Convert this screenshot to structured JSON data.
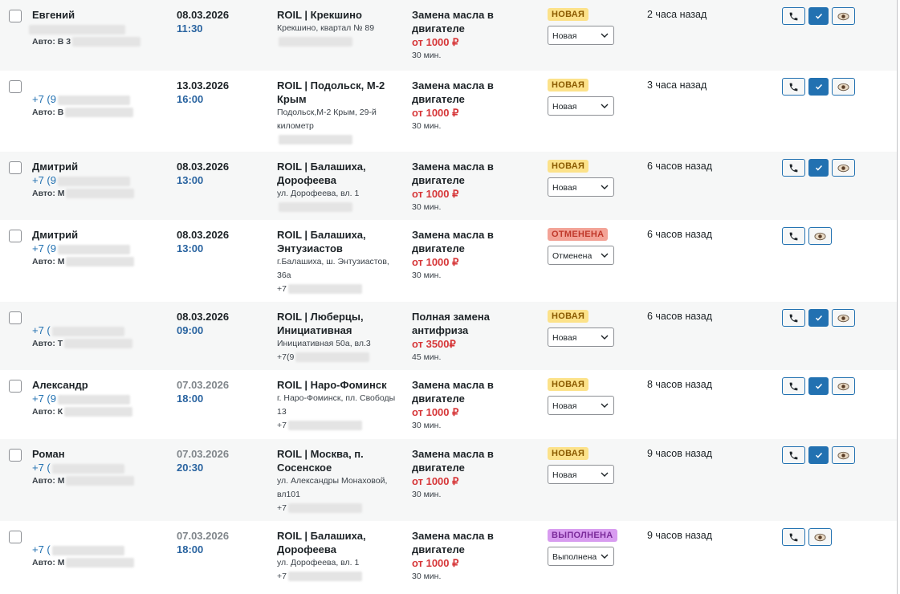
{
  "rows": [
    {
      "name": "Евгений",
      "car": "Авто: В 3",
      "date": "08.03.2026",
      "time": "11:30",
      "date_muted": false,
      "location": "ROIL | Крекшино",
      "address": "Крекшино, квартал № 89",
      "service": "Замена масла в двигателе",
      "price": "от 1000 ₽",
      "duration": "30 мин.",
      "badge": "НОВАЯ",
      "status": "Новая",
      "status_kind": "new",
      "ago": "2 часа назад",
      "confirm": true
    },
    {
      "phone": "+7 (9",
      "car": "Авто: В",
      "date": "13.03.2026",
      "time": "16:00",
      "date_muted": false,
      "location": "ROIL | Подольск, М-2 Крым",
      "address": "Подольск,М-2 Крым, 29-й километр",
      "service": "Замена масла в двигателе",
      "price": "от 1000 ₽",
      "duration": "30 мин.",
      "badge": "НОВАЯ",
      "status": "Новая",
      "status_kind": "new",
      "ago": "3 часа назад",
      "confirm": true
    },
    {
      "name": "Дмитрий",
      "phone": "+7 (9",
      "car": "Авто: М",
      "date": "08.03.2026",
      "time": "13:00",
      "date_muted": false,
      "location": "ROIL | Балашиха, Дорофеева",
      "address": "ул. Дорофеева, вл. 1",
      "service": "Замена масла в двигателе",
      "price": "от 1000 ₽",
      "duration": "30 мин.",
      "badge": "НОВАЯ",
      "status": "Новая",
      "status_kind": "new",
      "ago": "6 часов назад",
      "confirm": true
    },
    {
      "name": "Дмитрий",
      "phone": "+7 (9",
      "car": "Авто: М",
      "date": "08.03.2026",
      "time": "13:00",
      "date_muted": false,
      "location": "ROIL | Балашиха, Энтузиастов",
      "address": "г.Балашиха, ш. Энтузиастов, 36а",
      "location_phone": "+7",
      "service": "Замена масла в двигателе",
      "price": "от 1000 ₽",
      "duration": "30 мин.",
      "badge": "ОТМЕНЕНА",
      "status": "Отменена",
      "status_kind": "cancelled",
      "ago": "6 часов назад",
      "confirm": false
    },
    {
      "phone": "+7 (",
      "car": "Авто: Т",
      "date": "08.03.2026",
      "time": "09:00",
      "date_muted": false,
      "location": "ROIL | Люберцы, Инициативная",
      "address": "Инициативная 50а, вл.3",
      "location_phone": "+7(9",
      "service": "Полная замена антифриза",
      "price": "от 3500₽",
      "duration": "45 мин.",
      "badge": "НОВАЯ",
      "status": "Новая",
      "status_kind": "new",
      "ago": "6 часов назад",
      "confirm": true
    },
    {
      "name": "Александр",
      "phone": "+7 (9",
      "car": "Авто: К",
      "date": "07.03.2026",
      "time": "18:00",
      "date_muted": true,
      "location": "ROIL | Наро-Фоминск",
      "address": "г. Наро-Фоминск, пл. Свободы 13",
      "location_phone": "+7",
      "service": "Замена масла в двигателе",
      "price": "от 1000 ₽",
      "duration": "30 мин.",
      "badge": "НОВАЯ",
      "status": "Новая",
      "status_kind": "new",
      "ago": "8 часов назад",
      "confirm": true
    },
    {
      "name": "Роман",
      "phone": "+7 (",
      "car": "Авто: М",
      "date": "07.03.2026",
      "time": "20:30",
      "date_muted": true,
      "location": "ROIL | Москва, п. Сосенское",
      "address": "ул. Александры Монаховой, вл101",
      "location_phone": "+7",
      "service": "Замена масла в двигателе",
      "price": "от 1000 ₽",
      "duration": "30 мин.",
      "badge": "НОВАЯ",
      "status": "Новая",
      "status_kind": "new",
      "ago": "9 часов назад",
      "confirm": true
    },
    {
      "phone": "+7 (",
      "car": "Авто: М",
      "date": "07.03.2026",
      "time": "18:00",
      "date_muted": true,
      "location": "ROIL | Балашиха, Дорофеева",
      "address": "ул. Дорофеева, вл. 1",
      "location_phone": "+7",
      "service": "Замена масла в двигателе",
      "price": "от 1000 ₽",
      "duration": "30 мин.",
      "badge": "ВЫПОЛНЕНА",
      "status": "Выполнена",
      "status_kind": "done",
      "ago": "9 часов назад",
      "confirm": false
    }
  ]
}
